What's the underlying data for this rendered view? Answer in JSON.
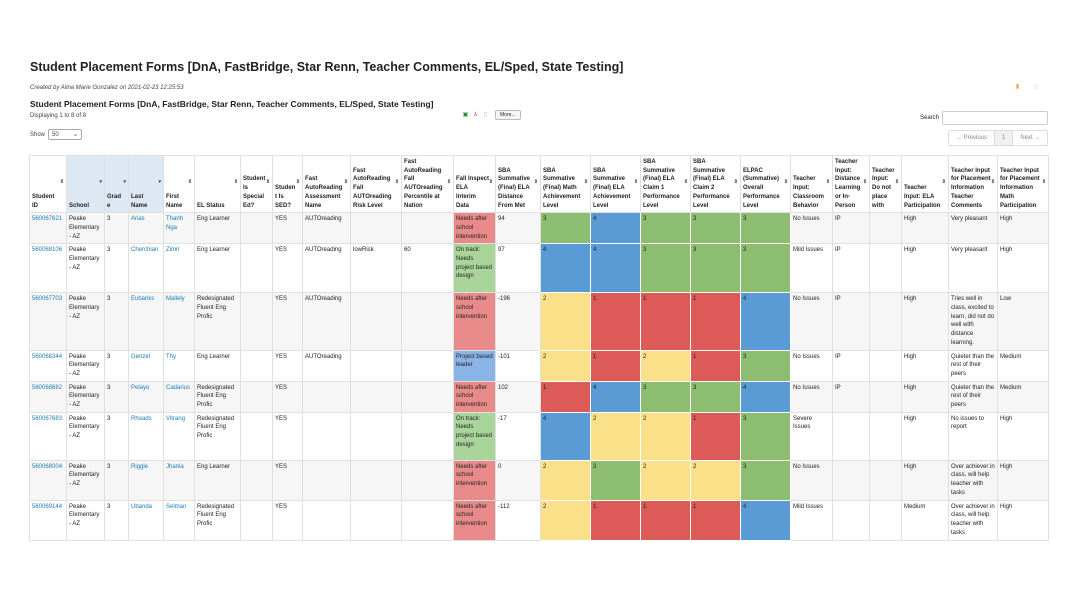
{
  "report": {
    "title": "Student Placement Forms [DnA, FastBridge, Star Renn, Teacher Comments, EL/Sped, State Testing]",
    "created": "Created by Alina Marie Gonzalez on 2021-02-23 12:25:53",
    "subtitle": "Student Placement Forms [DnA, FastBridge, Star Renn, Teacher Comments, EL/Sped, State Testing]",
    "displaying": "Displaying 1 to 8 of 8",
    "show_label": "Show",
    "show_value": "50",
    "more_label": "More...",
    "search_label": "Search",
    "search_value": "",
    "prev_label": "← Previous",
    "page": "1",
    "next_label": "Next →"
  },
  "colors": {
    "red": "#dc5a57",
    "green": "#8cbd70",
    "blue": "#5b9bd5",
    "yellow": "#fbe08a",
    "link": "#1a7bb5"
  },
  "columns": [
    {
      "label": "Student ID",
      "sort": "both"
    },
    {
      "label": "School",
      "sort": "desc",
      "sorted": true
    },
    {
      "label": "Grade",
      "sort": "desc",
      "sorted": true
    },
    {
      "label": "Last Name",
      "sort": "desc",
      "sorted": true
    },
    {
      "label": "First Name",
      "sort": "both"
    },
    {
      "label": "EL Status",
      "sort": "both"
    },
    {
      "label": "Student Is Special Ed?",
      "sort": "both"
    },
    {
      "label": "Student Is SED?",
      "sort": "both"
    },
    {
      "label": "Fast AutoReading Assessment Name",
      "sort": "both"
    },
    {
      "label": "Fast AutoReading Fall AUTOreading Risk Level",
      "sort": "both"
    },
    {
      "label": "Fast AutoReading Fall AUTOreading Percentile at Nation",
      "sort": "both"
    },
    {
      "label": "Fall Inspect ELA Interim Data",
      "sort": "both"
    },
    {
      "label": "SBA Summative (Final) ELA Distance From Met",
      "sort": "both"
    },
    {
      "label": "SBA Summative (Final) Math Achievement Level",
      "sort": "both"
    },
    {
      "label": "SBA Summative (Final) ELA Achievement Level",
      "sort": "both"
    },
    {
      "label": "SBA Summative (Final) ELA Claim 1 Performance Level",
      "sort": "both"
    },
    {
      "label": "SBA Summative (Final) ELA Claim 2 Performance Level",
      "sort": "both"
    },
    {
      "label": "ELPAC (Summative) Overall Performance Level",
      "sort": "both"
    },
    {
      "label": "Teacher Input: Classroom Behavior",
      "sort": "both"
    },
    {
      "label": "Teacher Input: Distance Learning or In-Person",
      "sort": "both"
    },
    {
      "label": "Teacher Input: Do not place with",
      "sort": "both"
    },
    {
      "label": "Teacher Input: ELA Participation",
      "sort": "both"
    },
    {
      "label": "Teacher Input for Placement Information Teacher Comments",
      "sort": "both"
    },
    {
      "label": "Teacher Input for Placement Information Math Participation",
      "sort": "both"
    }
  ],
  "rows": [
    [
      "560067621",
      "Peake Elementary - AZ",
      "3",
      "Arias",
      "Thanh Nga",
      "Eng Learner",
      "",
      "YES",
      "AUTOreading",
      "",
      "",
      "Needs after school intervention",
      "94",
      "3",
      "4",
      "3",
      "3",
      "3",
      "No Issues",
      "IP",
      "",
      "High",
      "Very pleasant",
      "High"
    ],
    [
      "560068106",
      "Peake Elementary - AZ",
      "3",
      "Cherchian",
      "Zimri",
      "Eng Learner",
      "",
      "YES",
      "AUTOreading",
      "lowRisk",
      "60",
      "On track: Needs project based design",
      "97",
      "4",
      "4",
      "3",
      "3",
      "3",
      "Mild Issues",
      "IP",
      "",
      "High",
      "Very pleasant",
      "High"
    ],
    [
      "560067703",
      "Peake Elementary - AZ",
      "3",
      "Eubanks",
      "Mallely",
      "Redesignated Fluent Eng Profic",
      "",
      "YES",
      "AUTOreading",
      "",
      "",
      "Needs after school intervention",
      "-196",
      "2",
      "1",
      "1",
      "1",
      "4",
      "No Issues",
      "IP",
      "",
      "High",
      "Tries well in class, excited to learn, did not do well with distance learning.",
      "Low"
    ],
    [
      "560068344",
      "Peake Elementary - AZ",
      "3",
      "Genzel",
      "Thy",
      "Eng Learner",
      "",
      "YES",
      "AUTOreading",
      "",
      "",
      "Project based leader",
      "-101",
      "2",
      "1",
      "2",
      "1",
      "3",
      "No Issues",
      "IP",
      "",
      "High",
      "Quieter than the rest of their peers",
      "Medium"
    ],
    [
      "560068682",
      "Peake Elementary - AZ",
      "3",
      "Pelayo",
      "Cadarius",
      "Redesignated Fluent Eng Profic",
      "",
      "YES",
      "",
      "",
      "",
      "Needs after school intervention",
      "102",
      "1",
      "4",
      "3",
      "3",
      "4",
      "No Issues",
      "IP",
      "",
      "High",
      "Quieter than the rest of their peers",
      "Medium"
    ],
    [
      "560067683",
      "Peake Elementary - AZ",
      "3",
      "Rhoads",
      "Vitrang",
      "Redesignated Fluent Eng Profic",
      "",
      "YES",
      "",
      "",
      "",
      "On track: Needs project based design",
      "-17",
      "4",
      "2",
      "2",
      "1",
      "3",
      "Severe Issues",
      "",
      "",
      "High",
      "No issues to report",
      "High"
    ],
    [
      "560068004",
      "Peake Elementary - AZ",
      "3",
      "Riggle",
      "Jhania",
      "Eng Learner",
      "",
      "YES",
      "",
      "",
      "",
      "Needs after school intervention",
      "0",
      "2",
      "3",
      "2",
      "2",
      "3",
      "No Issues",
      "",
      "",
      "High",
      "Over achiever in class, will help teacher with tasks",
      "High"
    ],
    [
      "560069144",
      "Peake Elementary - AZ",
      "3",
      "Ubanda",
      "Selman",
      "Redesignated Fluent Eng Profic",
      "",
      "YES",
      "",
      "",
      "",
      "Needs after school intervention",
      "-112",
      "2",
      "1",
      "1",
      "1",
      "4",
      "Mild Issues",
      "",
      "",
      "Medium",
      "Over achiever in class, will help teacher with tasks",
      "High"
    ]
  ]
}
